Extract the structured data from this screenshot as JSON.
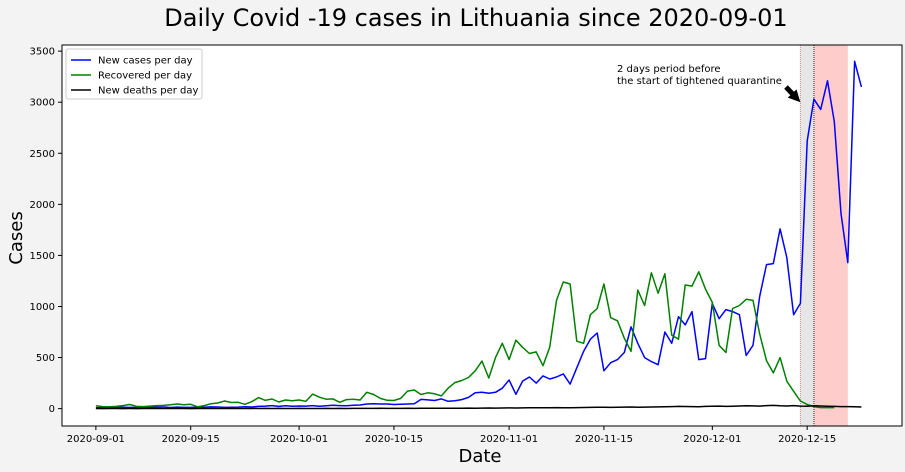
{
  "chart_data": {
    "type": "line",
    "title": "Daily Covid -19 cases in Lithuania since 2020-09-01",
    "xlabel": "Date",
    "ylabel": "Cases",
    "x_start": "2020-09-01",
    "x_ticks": [
      "2020-09-01",
      "2020-09-15",
      "2020-10-01",
      "2020-10-15",
      "2020-11-01",
      "2020-11-15",
      "2020-12-01",
      "2020-12-15"
    ],
    "xlim": [
      "2020-08-27",
      "2020-12-29"
    ],
    "y_ticks": [
      0,
      500,
      1000,
      1500,
      2000,
      2500,
      3000,
      3500
    ],
    "ylim": [
      -170,
      3560
    ],
    "grid": false,
    "legend_position": "upper-left",
    "series": [
      {
        "name": "New cases per day",
        "color": "#0000ff",
        "values": [
          8,
          12,
          10,
          14,
          13,
          12,
          11,
          12,
          13,
          16,
          16,
          11,
          15,
          12,
          12,
          13,
          14,
          17,
          16,
          12,
          14,
          15,
          18,
          16,
          22,
          25,
          30,
          22,
          28,
          24,
          26,
          25,
          30,
          24,
          28,
          33,
          30,
          28,
          33,
          36,
          45,
          48,
          45,
          45,
          40,
          42,
          45,
          47,
          90,
          86,
          80,
          95,
          72,
          78,
          88,
          110,
          155,
          160,
          150,
          160,
          200,
          280,
          140,
          270,
          310,
          250,
          320,
          290,
          310,
          340,
          240,
          400,
          560,
          680,
          740,
          370,
          450,
          480,
          550,
          800,
          640,
          500,
          460,
          430,
          750,
          640,
          900,
          820,
          950,
          480,
          490,
          1030,
          880,
          970,
          950,
          920,
          520,
          620,
          1100,
          1410,
          1420,
          1760,
          1480,
          920,
          1030,
          2620,
          3030,
          2930,
          3210,
          2810,
          1910,
          1430,
          3400,
          3150
        ],
        "note_only_visible": true
      },
      {
        "name": "Recovered per day",
        "color": "#008000",
        "values": [
          28,
          20,
          18,
          22,
          30,
          40,
          22,
          20,
          25,
          30,
          32,
          38,
          45,
          38,
          42,
          18,
          30,
          48,
          55,
          75,
          60,
          62,
          42,
          68,
          108,
          82,
          94,
          65,
          85,
          78,
          85,
          72,
          142,
          112,
          92,
          95,
          62,
          88,
          92,
          85,
          160,
          138,
          100,
          82,
          80,
          100,
          172,
          182,
          138,
          155,
          145,
          125,
          200,
          255,
          275,
          305,
          370,
          465,
          300,
          500,
          640,
          480,
          670,
          600,
          540,
          555,
          420,
          600,
          1060,
          1240,
          1220,
          660,
          640,
          920,
          980,
          1220,
          890,
          860,
          690,
          560,
          1160,
          1010,
          1330,
          1130,
          1320,
          720,
          680,
          1210,
          1200,
          1340,
          1170,
          1040,
          620,
          550,
          980,
          1010,
          1070,
          1060,
          730,
          470,
          350,
          500,
          270,
          170,
          75,
          40,
          20,
          10,
          10,
          10
        ],
        "note_only_visible": true
      },
      {
        "name": "New deaths per day",
        "color": "#000000",
        "values": [
          1,
          0,
          1,
          1,
          0,
          1,
          0,
          1,
          1,
          2,
          1,
          1,
          1,
          1,
          0,
          1,
          1,
          2,
          1,
          1,
          1,
          1,
          1,
          2,
          1,
          2,
          1,
          2,
          1,
          1,
          2,
          1,
          1,
          1,
          2,
          1,
          2,
          1,
          2,
          2,
          2,
          2,
          3,
          2,
          2,
          2,
          3,
          2,
          3,
          3,
          4,
          3,
          3,
          4,
          4,
          5,
          4,
          5,
          6,
          5,
          6,
          7,
          6,
          7,
          8,
          9,
          8,
          9,
          10,
          9,
          8,
          10,
          11,
          12,
          13,
          14,
          12,
          13,
          15,
          16,
          14,
          15,
          16,
          17,
          18,
          20,
          22,
          21,
          20,
          18,
          22,
          24,
          25,
          22,
          24,
          26,
          28,
          27,
          25,
          30,
          32,
          28,
          26,
          30,
          25,
          24,
          28,
          26,
          24,
          22,
          20,
          20,
          18,
          16
        ],
        "note_only_visible": true
      }
    ],
    "annotation": {
      "text_line1": "2 days period before",
      "text_line2": "the start of tightened quarantine",
      "arrow_target_date": "2020-12-14",
      "arrow_target_value": 3000
    },
    "shaded_regions": [
      {
        "start": "2020-12-14",
        "end": "2020-12-16",
        "color": "#e6e6e6"
      },
      {
        "start": "2020-12-16",
        "end": "2020-12-21",
        "color": "#ffcccc"
      }
    ]
  }
}
